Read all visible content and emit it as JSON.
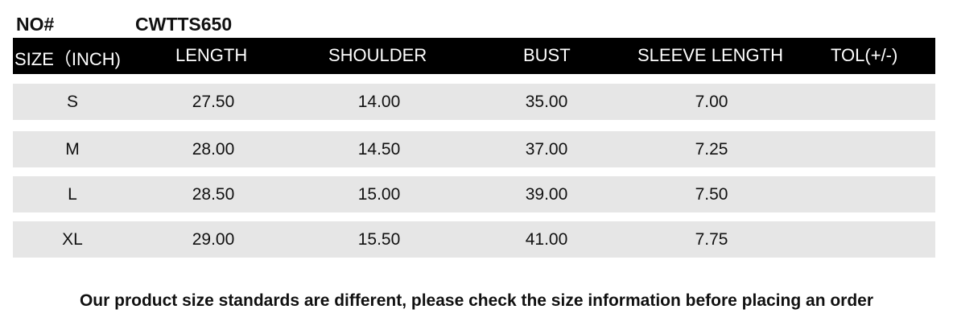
{
  "header": {
    "no_label": "NO#",
    "no_value": "CWTTS650"
  },
  "table": {
    "columns": [
      "SIZE（INCH)",
      "LENGTH",
      "SHOULDER",
      "BUST",
      "SLEEVE LENGTH",
      "TOL(+/-)"
    ],
    "rows": [
      [
        "S",
        "27.50",
        "14.00",
        "35.00",
        "7.00",
        ""
      ],
      [
        "M",
        "28.00",
        "14.50",
        "37.00",
        "7.25",
        ""
      ],
      [
        "L",
        "28.50",
        "15.00",
        "39.00",
        "7.50",
        ""
      ],
      [
        "XL",
        "29.00",
        "15.50",
        "41.00",
        "7.75",
        ""
      ]
    ]
  },
  "footer": {
    "note": "Our product size standards are different, please check the size information before placing an order"
  },
  "colors": {
    "header_bg": "#000000",
    "row_bg": "#e6e6e6"
  }
}
